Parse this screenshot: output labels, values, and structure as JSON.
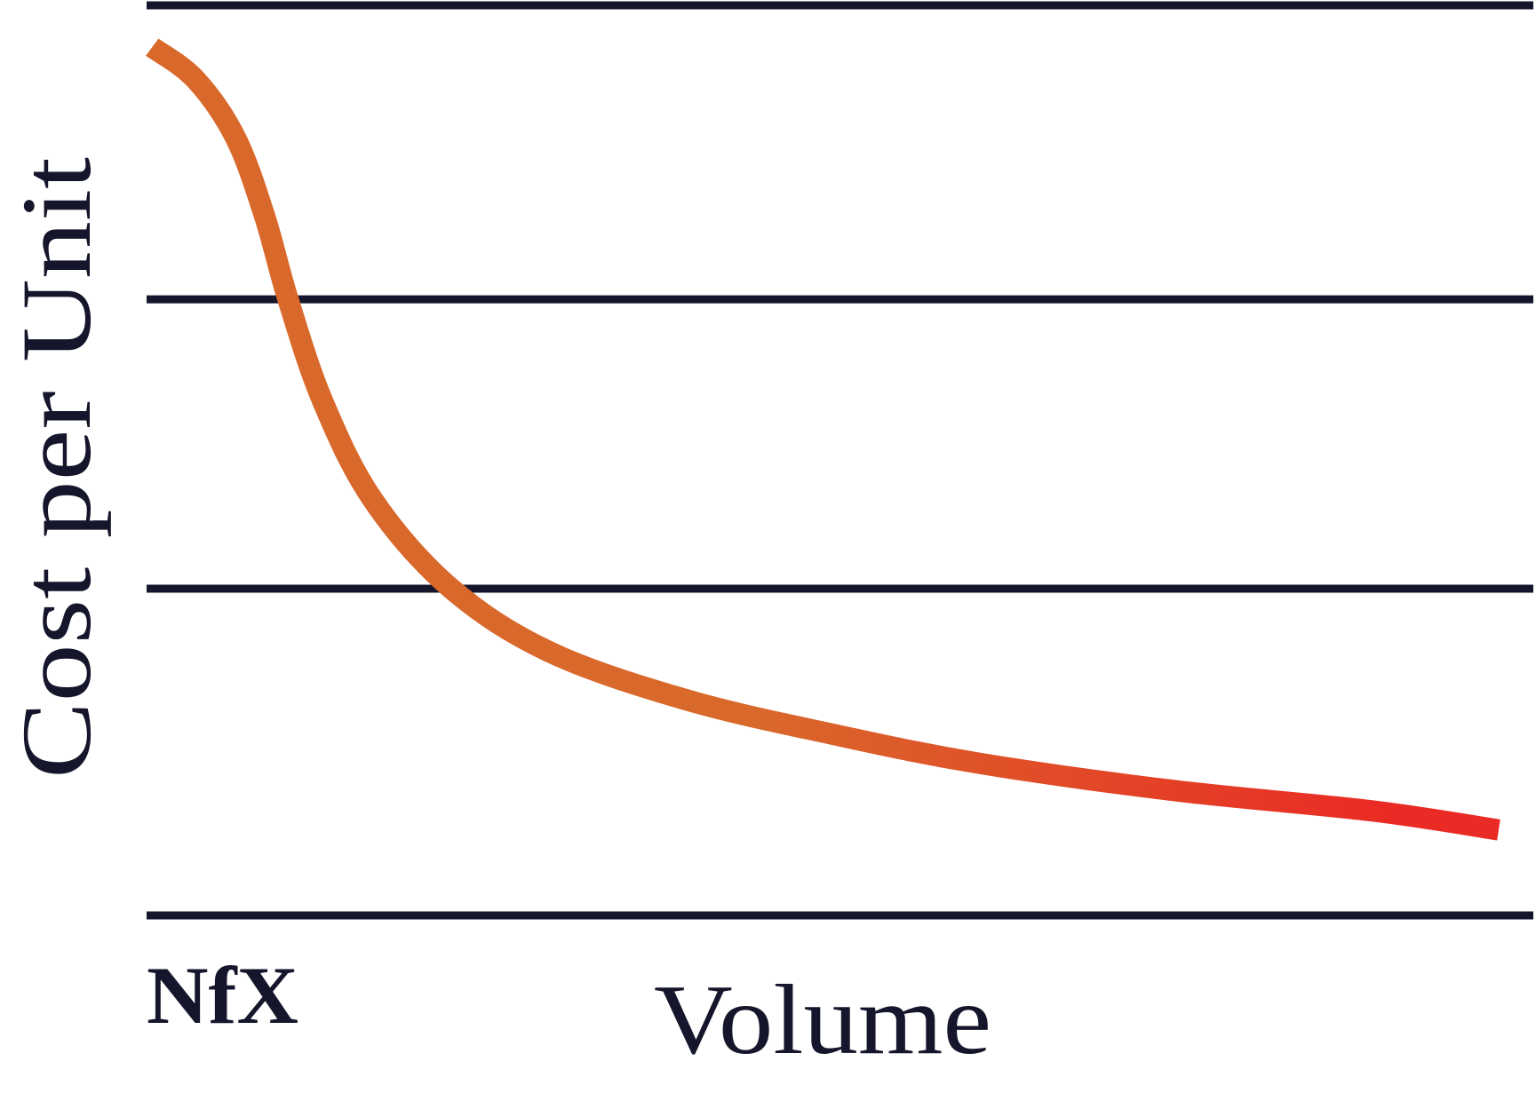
{
  "chart_data": {
    "type": "line",
    "y_label": "Cost per Unit",
    "x_label": "Volume",
    "logo": "NfX",
    "xlim": [
      0,
      100
    ],
    "ylim": [
      0,
      100
    ],
    "yticks": [
      0,
      35.9,
      67.7,
      100
    ],
    "grid": true,
    "series": [
      {
        "colors": [
          "#d9682b",
          "#ea2a24"
        ],
        "x": [
          0.4,
          3.5,
          6.4,
          8.5,
          10.2,
          12.7,
          16.3,
          21.9,
          29.0,
          38.9,
          49.5,
          60.1,
          74.2,
          88.3,
          97.5
        ],
        "values": [
          95.4,
          91.9,
          85.5,
          76.9,
          67.7,
          56.5,
          45.7,
          36.0,
          29.0,
          23.7,
          19.9,
          16.7,
          13.7,
          11.5,
          9.4
        ]
      }
    ]
  }
}
